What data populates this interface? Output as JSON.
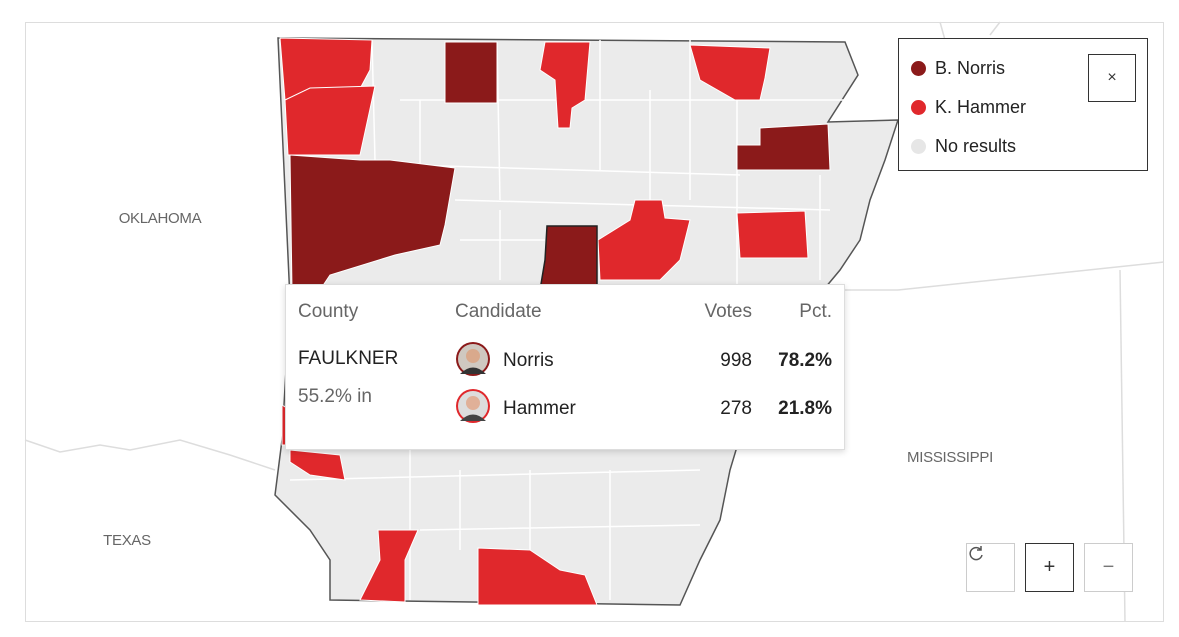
{
  "map": {
    "labels": [
      "OKLAHOMA",
      "TEXAS",
      "MISSISSIPPI"
    ]
  },
  "legend": [
    {
      "name": "B. Norris",
      "color": "#8b1a1a"
    },
    {
      "name": "K. Hammer",
      "color": "#e0282c"
    },
    {
      "name": "No results",
      "color": "#e6e6e6"
    }
  ],
  "tooltip": {
    "headers": [
      "County",
      "Candidate",
      "Votes",
      "Pct."
    ],
    "county": "FAULKNER",
    "reporting": "55.2% in",
    "rows": [
      {
        "candidate": "Norris",
        "votes": 998,
        "pct": "78.2%"
      },
      {
        "candidate": "Hammer",
        "votes": 278,
        "pct": "21.8%"
      }
    ]
  },
  "controls": {
    "close": "×",
    "zoom_in": "+",
    "zoom_out": "−"
  }
}
